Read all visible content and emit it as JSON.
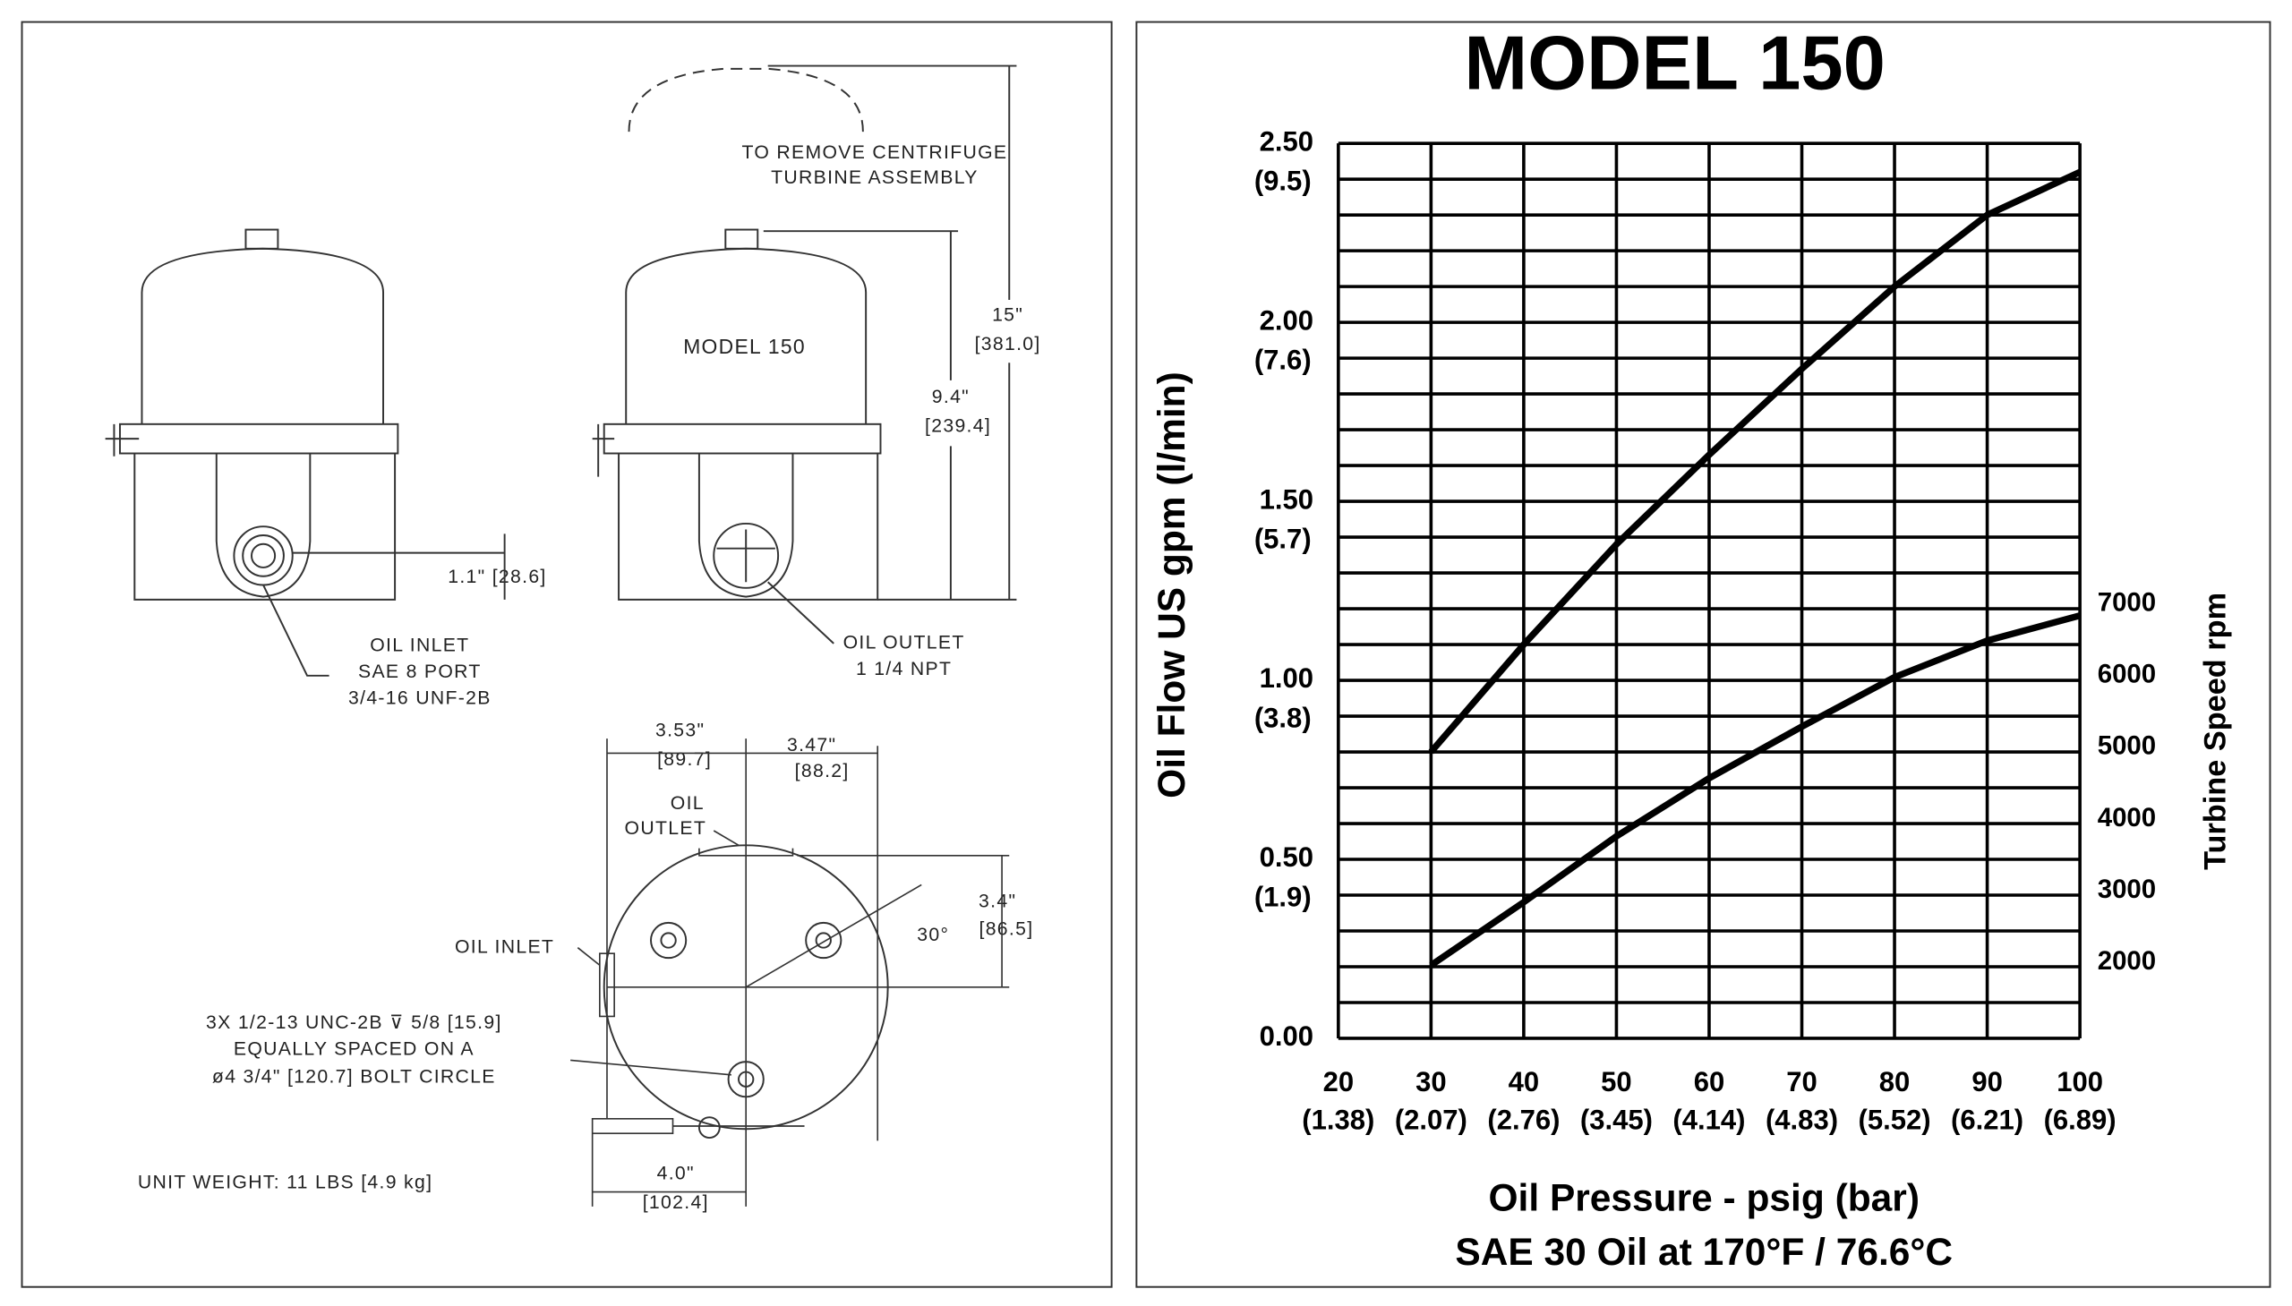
{
  "drawing": {
    "labels": [
      "TO REMOVE CENTRIFUGE",
      "TURBINE ASSEMBLY",
      "MODEL 150",
      "15\"",
      "[381.0]",
      "9.4\"",
      "[239.4]",
      "1.1\" [28.6]",
      "OIL INLET",
      "SAE 8 PORT",
      "3/4-16 UNF-2B",
      "OIL OUTLET",
      "1 1/4 NPT",
      "3.53\"",
      "[89.7]",
      "3.47\"",
      "[88.2]",
      "OIL",
      "OUTLET",
      "OIL INLET",
      "3.4\"",
      "[86.5]",
      "30°",
      "3X 1/2-13 UNC-2B ⊽ 5/8 [15.9]",
      "EQUALLY SPACED ON A",
      "ø4 3/4\" [120.7] BOLT CIRCLE",
      "4.0\"",
      "[102.4]",
      "UNIT WEIGHT: 11 LBS [4.9 kg]"
    ]
  },
  "chart_data": {
    "type": "line",
    "title": "MODEL 150",
    "x_label": "Oil Pressure - psig (bar)",
    "x_sublabel": "SAE 30 Oil at 170°F / 76.6°C",
    "y_label": "Oil Flow US gpm (l/min)",
    "y2_label": "Turbine Speed rpm",
    "x": [
      30,
      40,
      50,
      60,
      70,
      80,
      90,
      100
    ],
    "series": [
      {
        "color": "#000000",
        "values": [
          0.8,
          1.1,
          1.38,
          1.63,
          1.87,
          2.1,
          2.3,
          2.42
        ]
      },
      {
        "color": "#000000",
        "axis": "y2",
        "values": [
          1960,
          2840,
          3760,
          4570,
          5290,
          5980,
          6490,
          6840
        ]
      }
    ],
    "xlim": [
      20,
      100
    ],
    "xticks": [
      20,
      30,
      40,
      50,
      60,
      70,
      80,
      90,
      100
    ],
    "xtick_sublabels": [
      "(1.38)",
      "(2.07)",
      "(2.76)",
      "(3.45)",
      "(4.14)",
      "(4.83)",
      "(5.52)",
      "(6.21)",
      "(6.89)"
    ],
    "ylim": [
      0,
      2.5
    ],
    "yticks": [
      {
        "value": 0,
        "label": "0.00"
      },
      {
        "value": 0.5,
        "label": "0.50"
      },
      {
        "value": 1,
        "label": "1.00"
      },
      {
        "value": 1.5,
        "label": "1.50"
      },
      {
        "value": 2,
        "label": "2.00"
      },
      {
        "value": 2.5,
        "label": "2.50"
      }
    ],
    "ytick_sublabels": [
      null,
      "(1.9)",
      "(3.8)",
      "(5.7)",
      "(7.6)",
      "(9.5)"
    ],
    "ygrid": [
      0,
      0.1,
      0.2,
      0.3,
      0.4,
      0.5,
      0.6,
      0.7,
      0.8,
      0.9,
      1.0,
      1.1,
      1.2,
      1.3,
      1.4,
      1.5,
      1.6,
      1.7,
      1.8,
      1.9,
      2.0,
      2.1,
      2.2,
      2.3,
      2.4,
      2.5
    ],
    "y2lim": [
      940,
      13430
    ],
    "y2ticks": [
      2000,
      3000,
      4000,
      5000,
      6000,
      7000
    ],
    "grid": true
  }
}
